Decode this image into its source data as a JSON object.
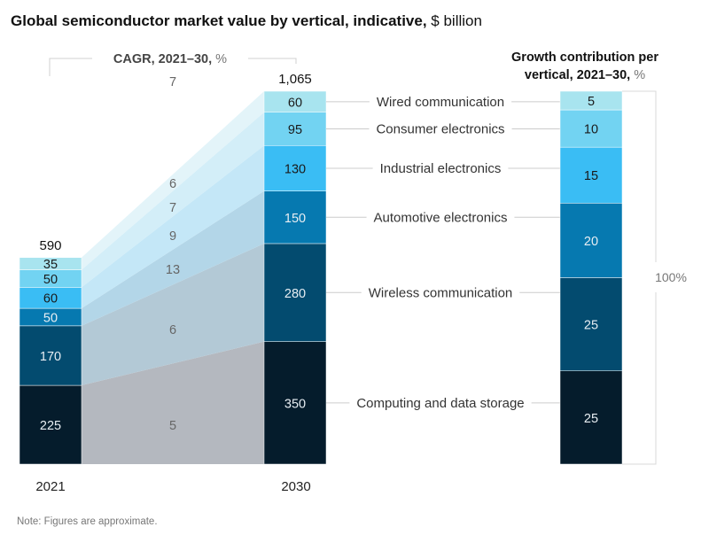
{
  "title": {
    "main": "Global semiconductor market value by vertical, indicative,",
    "unit": " $ billion"
  },
  "cagr_header": {
    "main": "CAGR, 2021–30,",
    "unit": " %"
  },
  "growth_header": {
    "line1": "Growth contribution per",
    "line2_main": "vertical, 2021–30,",
    "line2_unit": " %"
  },
  "note": "Note: Figures are approximate.",
  "growth_total_label": "100%",
  "chart_data": {
    "type": "bar",
    "subtype": "stacked",
    "title": "Global semiconductor market value by vertical, indicative, $ billion",
    "categories": [
      "2021",
      "2030"
    ],
    "totals": [
      "590",
      "1,065"
    ],
    "series": [
      {
        "name": "Computing and data storage",
        "values": [
          225,
          350
        ],
        "cagr": "5",
        "growth_contribution": 25,
        "color": "#051c2c",
        "text_color": "#e8eef3"
      },
      {
        "name": "Wireless communication",
        "values": [
          170,
          280
        ],
        "cagr": "6",
        "growth_contribution": 25,
        "color": "#034b6f",
        "text_color": "#e8eef3"
      },
      {
        "name": "Automotive electronics",
        "values": [
          50,
          150
        ],
        "cagr": "13",
        "growth_contribution": 20,
        "color": "#0679b0",
        "text_color": "#e8eef3"
      },
      {
        "name": "Industrial electronics",
        "values": [
          60,
          130
        ],
        "cagr": "9",
        "growth_contribution": 15,
        "color": "#3abdf4",
        "text_color": "#1a1a1a"
      },
      {
        "name": "Consumer electronics",
        "values": [
          50,
          95
        ],
        "cagr": "7",
        "growth_contribution": 10,
        "color": "#72d3f2",
        "text_color": "#1a1a1a"
      },
      {
        "name": "Wired communication",
        "values": [
          35,
          60
        ],
        "cagr": "6",
        "growth_contribution": 5,
        "color": "#a8e4ef",
        "text_color": "#1a1a1a"
      }
    ],
    "total_cagr": "7",
    "band_colors": [
      "#b4b8bf",
      "#b3c9d6",
      "#b3d6e8",
      "#c4e7f7",
      "#d3eef8",
      "#e3f4f9"
    ],
    "growth_chart": {
      "title": "Growth contribution per vertical, 2021–30, %",
      "total": "100%"
    },
    "xlabel": "",
    "ylabel": "$ billion",
    "ylim": [
      0,
      1065
    ],
    "legend": "inline-labels-between-bars",
    "grid": false
  }
}
